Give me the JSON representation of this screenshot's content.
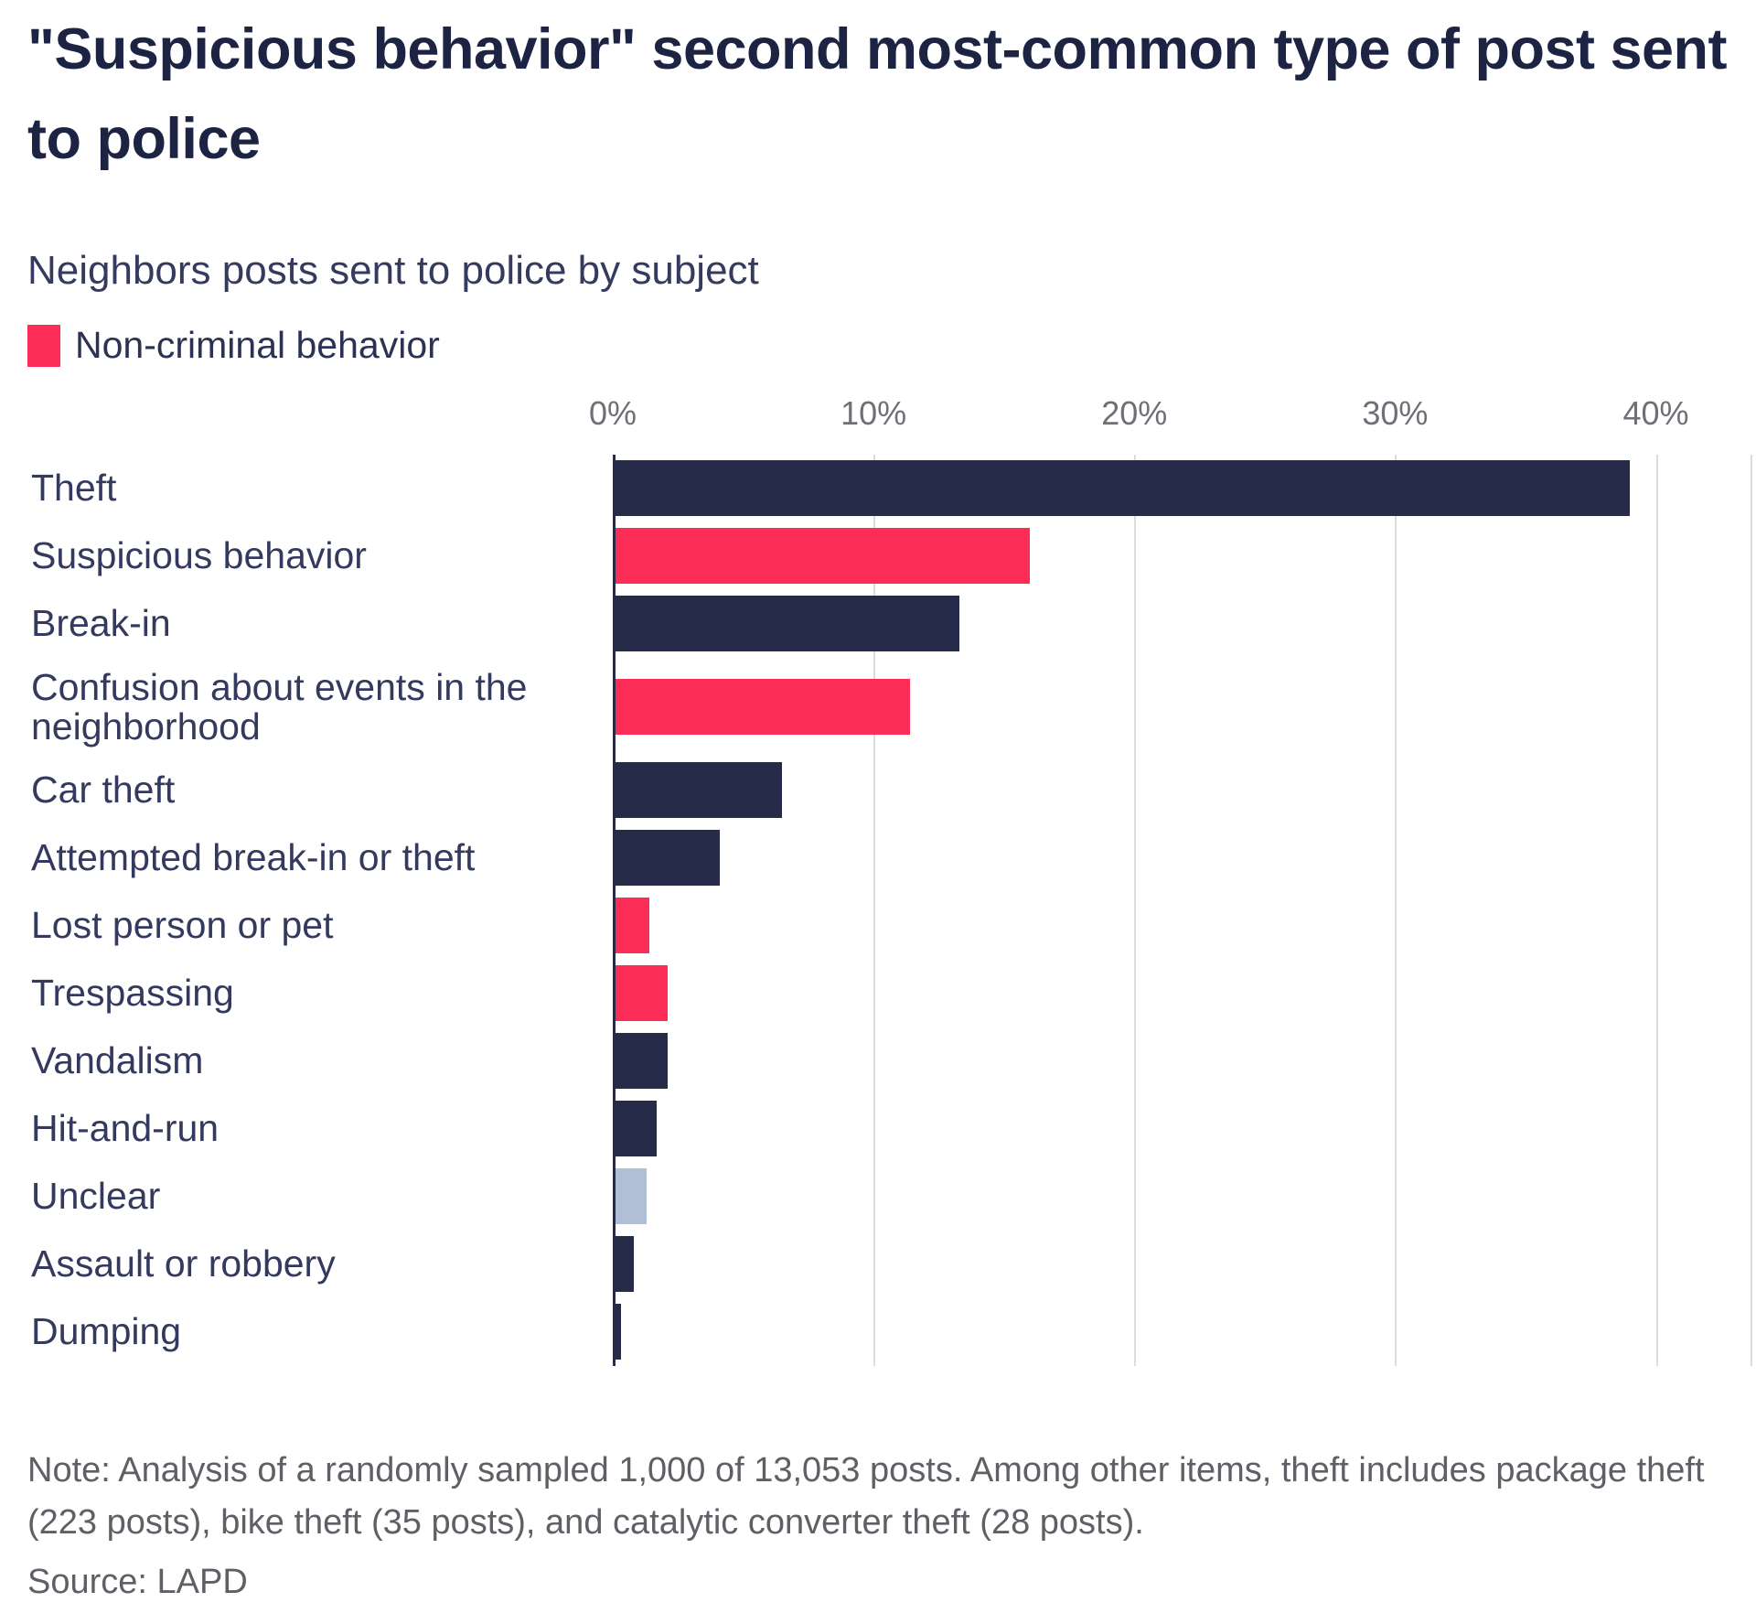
{
  "header": {
    "title": "\"Suspicious behavior\" second most-common type of post sent to police",
    "subtitle": "Neighbors posts sent to police by subject"
  },
  "legend": {
    "items": [
      {
        "label": "Non-criminal behavior",
        "group": "non_criminal"
      }
    ]
  },
  "palette": {
    "criminal": "#252b48",
    "non_criminal": "#fb2c55",
    "unclear": "#b0bfd5",
    "axis_line": "#252b48",
    "gridline": "#dcdcdc",
    "title_text": "#1d2342",
    "label_text": "#333a5e",
    "axis_text": "#6e7077",
    "note_text": "#5e6065"
  },
  "chart_data": {
    "type": "bar",
    "orientation": "horizontal",
    "title": "Neighbors posts sent to police by subject",
    "unit": "% of posts",
    "xlabel": "",
    "ylabel": "",
    "grid": true,
    "legend_position": "top-left",
    "x_axis": {
      "ticks": [
        0,
        10,
        20,
        30,
        40
      ],
      "tick_labels": [
        "0%",
        "10%",
        "20%",
        "30%",
        "40%"
      ],
      "max": 43.7
    },
    "bars": [
      {
        "label": "Theft",
        "value": 39,
        "group": "criminal"
      },
      {
        "label": "Suspicious behavior",
        "value": 16,
        "group": "non_criminal"
      },
      {
        "label": "Break-in",
        "value": 13.3,
        "group": "criminal"
      },
      {
        "label": "Confusion about events in the neighborhood",
        "value": 11.4,
        "group": "non_criminal"
      },
      {
        "label": "Car theft",
        "value": 6.5,
        "group": "criminal"
      },
      {
        "label": "Attempted break-in or theft",
        "value": 4.1,
        "group": "criminal"
      },
      {
        "label": "Lost person or pet",
        "value": 1.4,
        "group": "non_criminal"
      },
      {
        "label": "Trespassing",
        "value": 2.1,
        "group": "non_criminal"
      },
      {
        "label": "Vandalism",
        "value": 2.1,
        "group": "criminal"
      },
      {
        "label": "Hit-and-run",
        "value": 1.7,
        "group": "criminal"
      },
      {
        "label": "Unclear",
        "value": 1.3,
        "group": "unclear"
      },
      {
        "label": "Assault or robbery",
        "value": 0.8,
        "group": "criminal"
      },
      {
        "label": "Dumping",
        "value": 0.3,
        "group": "criminal"
      }
    ]
  },
  "footer": {
    "note": "Note: Analysis of a randomly sampled 1,000 of 13,053 posts. Among other items, theft includes package theft (223 posts), bike theft (35 posts), and catalytic converter theft (28 posts).",
    "source": "Source: LAPD"
  }
}
